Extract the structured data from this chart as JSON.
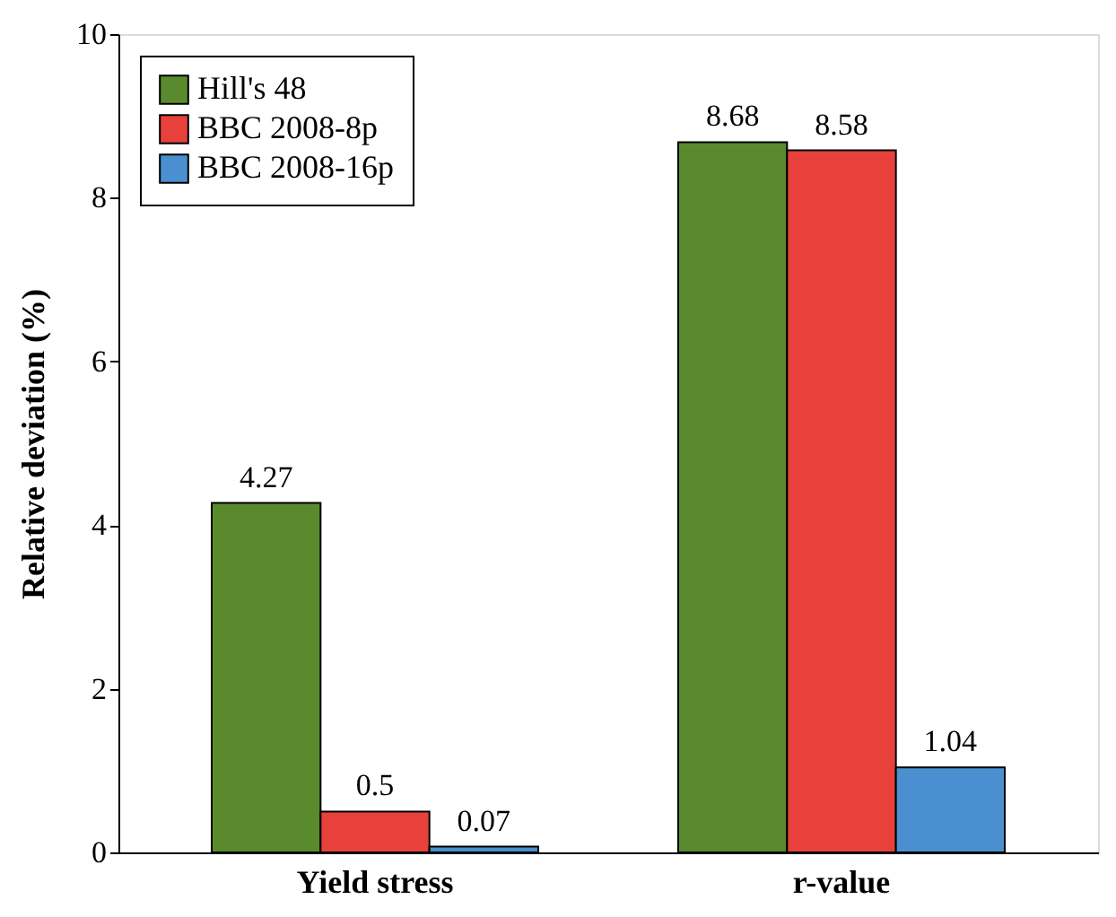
{
  "chart_data": {
    "type": "bar",
    "ylabel": "Relative deviation (%)",
    "categories": [
      "Yield stress",
      "r-value"
    ],
    "series": [
      {
        "name": "Hill's 48",
        "color": "#5a8a2e",
        "values": [
          4.27,
          8.68
        ]
      },
      {
        "name": "BBC 2008-8p",
        "color": "#e8413c",
        "values": [
          0.5,
          8.58
        ]
      },
      {
        "name": "BBC 2008-16p",
        "color": "#4a8fd0",
        "values": [
          0.07,
          1.04
        ]
      }
    ],
    "ylim": [
      0,
      10
    ],
    "yticks": [
      0,
      2,
      4,
      6,
      8,
      10
    ],
    "grid": false,
    "legend": "top left",
    "data_labels": true
  }
}
